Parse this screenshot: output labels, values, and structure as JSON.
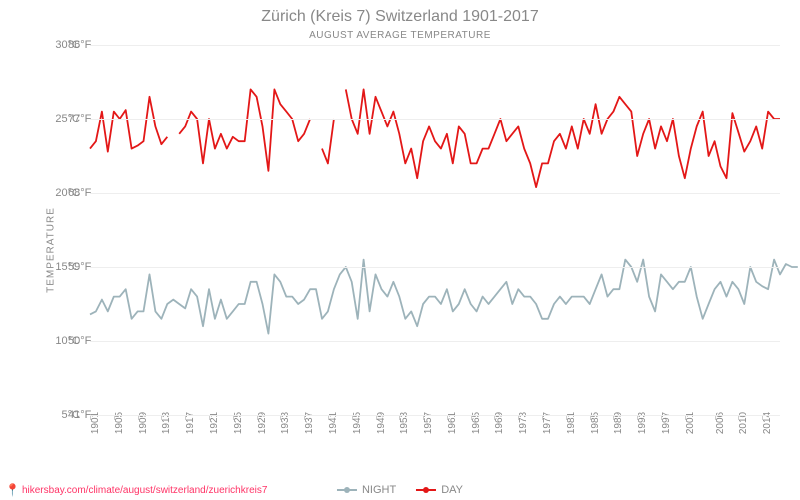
{
  "title": "Zürich (Kreis 7) Switzerland 1901-2017",
  "subtitle": "AUGUST AVERAGE TEMPERATURE",
  "ylabel": "TEMPERATURE",
  "attribution": "hikersbay.com/climate/august/switzerland/zuerichkreis7",
  "legend": {
    "night": "NIGHT",
    "day": "DAY"
  },
  "ylim_c": [
    5,
    30
  ],
  "yticks_c": [
    5,
    10,
    15,
    20,
    25,
    30
  ],
  "yticks_f": [
    41,
    50,
    59,
    68,
    77,
    86
  ],
  "xticks": [
    1901,
    1905,
    1909,
    1913,
    1917,
    1921,
    1925,
    1929,
    1933,
    1937,
    1941,
    1945,
    1949,
    1953,
    1957,
    1961,
    1965,
    1969,
    1973,
    1977,
    1981,
    1985,
    1989,
    1993,
    1997,
    2001,
    2006,
    2010,
    2014
  ],
  "colors": {
    "day": "#e31717",
    "night": "#9db3ba",
    "grid": "#eeeeee",
    "axis": "#cccccc",
    "text": "#888888",
    "bg": "#ffffff",
    "attribution": "#ff3366"
  },
  "line_width": 1.8,
  "marker_size": 0,
  "series": {
    "day": {
      "segments": [
        {
          "start_year": 1901,
          "values": [
            23.0,
            23.5,
            25.5,
            22.8,
            25.5,
            25.0,
            25.6,
            23.0,
            23.2,
            23.5,
            26.5,
            24.5,
            23.3,
            23.8
          ]
        },
        {
          "start_year": 1916,
          "values": [
            24.0,
            24.5,
            25.5,
            25.0,
            22.0,
            25.0,
            23.0,
            24.0,
            23.0,
            23.8,
            23.5,
            23.5,
            27.0,
            26.5,
            24.5,
            21.5,
            27.0,
            26.0,
            25.5,
            25.0,
            23.5,
            24.0,
            25.0
          ]
        },
        {
          "start_year": 1940,
          "values": [
            23.0,
            22.0,
            25.0
          ]
        },
        {
          "start_year": 1944,
          "values": [
            27.0,
            25.0,
            24.0,
            27.0,
            24.0,
            26.5,
            25.5,
            24.5,
            25.5,
            24.0,
            22.0,
            23.0,
            21.0,
            23.5,
            24.5,
            23.5,
            23.0,
            24.0,
            22.0,
            24.5,
            24.0,
            22.0,
            22.0,
            23.0,
            23.0,
            24.0,
            25.0,
            23.5,
            24.0,
            24.5,
            23.0,
            22.0,
            20.4,
            22.0,
            22.0,
            23.5,
            24.0,
            23.0,
            24.5,
            23.0,
            25.0,
            24.0,
            26.0,
            24.0,
            25.0,
            25.5,
            26.5,
            26.0,
            25.5,
            22.5,
            24.0,
            25.0,
            23.0,
            24.5,
            23.5,
            25.0,
            22.5,
            21.0,
            23.0,
            24.5,
            25.5,
            22.5,
            23.5,
            21.8,
            21.0,
            25.4,
            24.1,
            22.8,
            23.5,
            24.5,
            23.0,
            25.5,
            25.0,
            25.0
          ]
        }
      ]
    },
    "night": {
      "segments": [
        {
          "start_year": 1901,
          "values": [
            11.8,
            12.0,
            12.8,
            12.0,
            13.0,
            13.0,
            13.5,
            11.5,
            12.0,
            12.0,
            14.5,
            12.0,
            11.5,
            12.5,
            12.8,
            12.5,
            12.2,
            13.5,
            13.0,
            11.0,
            13.5,
            11.5,
            12.8,
            11.5,
            12.0,
            12.5,
            12.5,
            14.0,
            14.0,
            12.5,
            10.5,
            14.5,
            14.0,
            13.0,
            13.0,
            12.5,
            12.8,
            13.5,
            13.5,
            11.5,
            12.0,
            13.5,
            14.5,
            15.0,
            14.0,
            11.5,
            15.5,
            12.0,
            14.5,
            13.5,
            13.0,
            14.0,
            13.0,
            11.5,
            12.0,
            11.0,
            12.5,
            13.0,
            13.0,
            12.5,
            13.5,
            12.0,
            12.5,
            13.5,
            12.5,
            12.0,
            13.0,
            12.5,
            13.0,
            13.5,
            14.0,
            12.5,
            13.5,
            13.0,
            13.0,
            12.5,
            11.5,
            11.5,
            12.5,
            13.0,
            12.5,
            13.0,
            13.0,
            13.0,
            12.5,
            13.5,
            14.5,
            13.0,
            13.5,
            13.5,
            15.5,
            15.0,
            14.0,
            15.5,
            13.0,
            12.0,
            14.5,
            14.0,
            13.5,
            14.0,
            14.0,
            15.0,
            13.0,
            11.5,
            12.5,
            13.5,
            14.0,
            13.0,
            14.0,
            13.5,
            12.5,
            15.0,
            14.0,
            13.7,
            13.5,
            15.5,
            14.5,
            15.2,
            15.0,
            15.0
          ]
        }
      ]
    }
  }
}
